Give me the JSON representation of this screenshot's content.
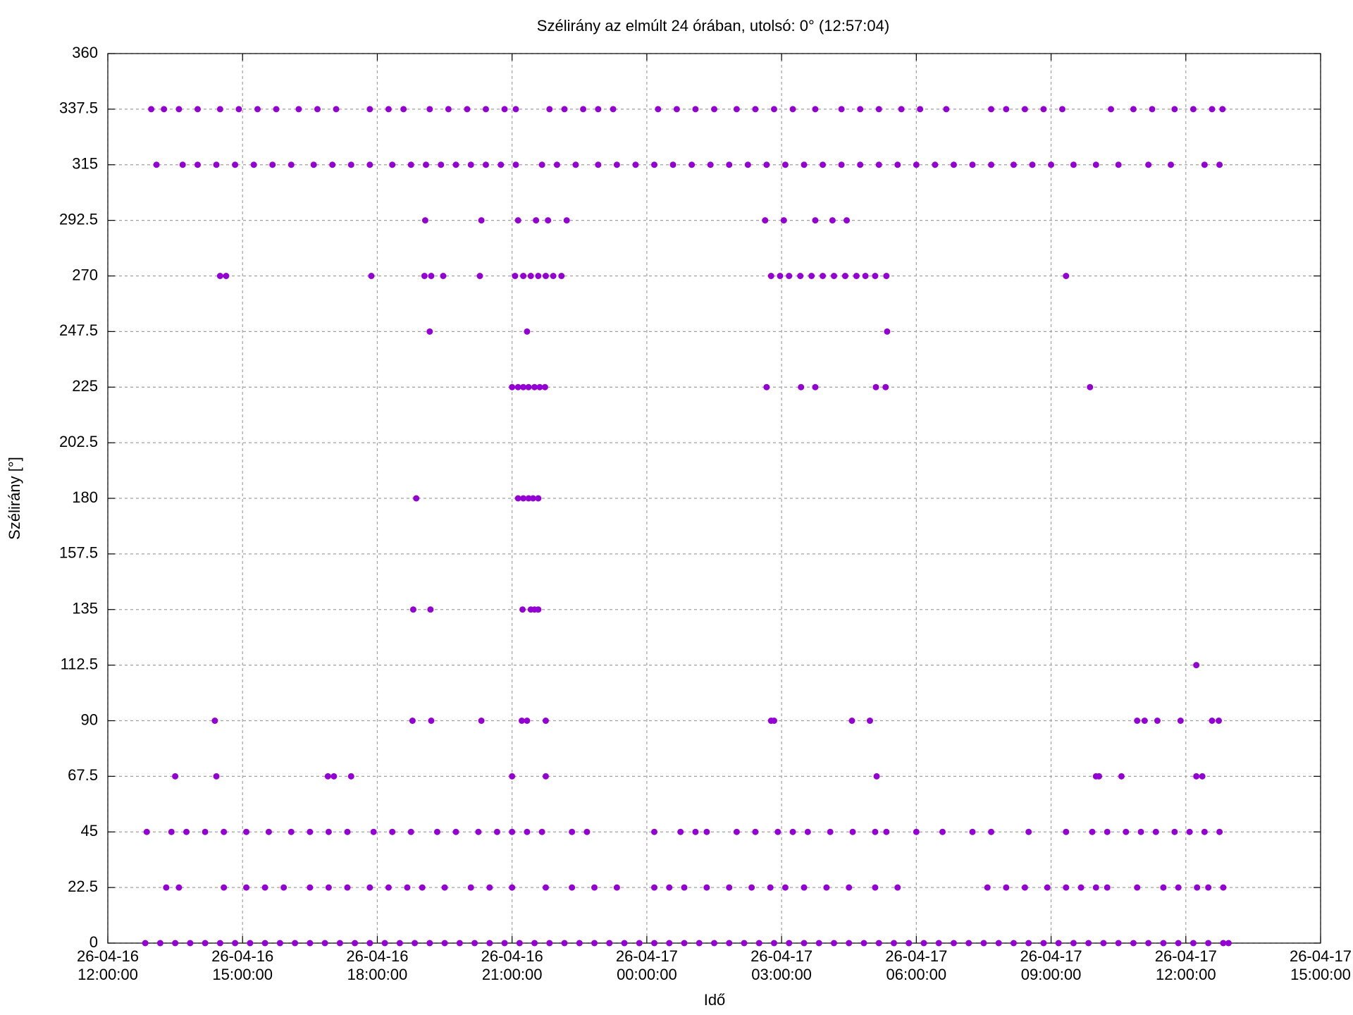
{
  "chart_data": {
    "type": "scatter",
    "title": "Szélirány az elmúlt 24 órában, utolsó: 0° (12:57:04)",
    "x_label": "Idő",
    "y_label": "Szélirány [°]",
    "xlim": [
      "26-04-16 12:00:00",
      "26-04-17 15:00:00"
    ],
    "xticks": [
      "26-04-16 12:00:00",
      "26-04-16 15:00:00",
      "26-04-16 18:00:00",
      "26-04-16 21:00:00",
      "26-04-17 00:00:00",
      "26-04-17 03:00:00",
      "26-04-17 06:00:00",
      "26-04-17 09:00:00",
      "26-04-17 12:00:00",
      "26-04-17 15:00:00"
    ],
    "ylim": [
      0,
      360
    ],
    "yticks": [
      0,
      22.5,
      45,
      67.5,
      90,
      112.5,
      135,
      157.5,
      180,
      202.5,
      225,
      247.5,
      270,
      292.5,
      315,
      337.5,
      360
    ],
    "grid": true,
    "series": [
      {
        "color": "#9400d3",
        "x": [
          "26-04-16 12:50:00",
          "26-04-16 13:10:00",
          "26-04-16 13:30:00",
          "26-04-16 13:50:00",
          "26-04-16 14:10:00",
          "26-04-16 14:30:00",
          "26-04-16 14:50:00",
          "26-04-16 15:10:00",
          "26-04-16 15:30:00",
          "26-04-16 15:50:00",
          "26-04-16 16:10:00",
          "26-04-16 16:30:00",
          "26-04-16 16:50:00",
          "26-04-16 17:10:00",
          "26-04-16 17:30:00",
          "26-04-16 17:50:00",
          "26-04-16 18:10:00",
          "26-04-16 18:30:00",
          "26-04-16 18:50:00",
          "26-04-16 19:10:00",
          "26-04-16 19:30:00",
          "26-04-16 19:50:00",
          "26-04-16 20:10:00",
          "26-04-16 20:30:00",
          "26-04-16 20:50:00",
          "26-04-16 21:10:00",
          "26-04-16 21:30:00",
          "26-04-16 21:50:00",
          "26-04-16 22:10:00",
          "26-04-16 22:30:00",
          "26-04-16 22:50:00",
          "26-04-16 23:10:00",
          "26-04-16 23:30:00",
          "26-04-16 23:50:00",
          "26-04-17 00:10:00",
          "26-04-17 00:30:00",
          "26-04-17 00:50:00",
          "26-04-17 01:10:00",
          "26-04-17 01:30:00",
          "26-04-17 01:50:00",
          "26-04-17 02:10:00",
          "26-04-17 02:30:00",
          "26-04-17 02:50:00",
          "26-04-17 03:10:00",
          "26-04-17 03:30:00",
          "26-04-17 03:50:00",
          "26-04-17 04:10:00",
          "26-04-17 04:30:00",
          "26-04-17 04:50:00",
          "26-04-17 05:10:00",
          "26-04-17 05:30:00",
          "26-04-17 05:50:00",
          "26-04-17 06:10:00",
          "26-04-17 06:30:00",
          "26-04-17 06:50:00",
          "26-04-17 07:10:00",
          "26-04-17 07:30:00",
          "26-04-17 07:50:00",
          "26-04-17 08:10:00",
          "26-04-17 08:30:00",
          "26-04-17 08:50:00",
          "26-04-17 09:10:00",
          "26-04-17 09:30:00",
          "26-04-17 09:50:00",
          "26-04-17 10:10:00",
          "26-04-17 10:30:00",
          "26-04-17 10:50:00",
          "26-04-17 11:10:00",
          "26-04-17 11:30:00",
          "26-04-17 11:50:00",
          "26-04-17 12:10:00",
          "26-04-17 12:30:00",
          "26-04-17 12:50:00",
          "26-04-17 12:57:04"
        ],
        "values": [
          0,
          0,
          0,
          0,
          0,
          0,
          0,
          0,
          0,
          0,
          0,
          0,
          0,
          0,
          0,
          0,
          0,
          0,
          0,
          0,
          0,
          0,
          0,
          0,
          0,
          0,
          0,
          0,
          0,
          0,
          0,
          0,
          0,
          0,
          0,
          0,
          0,
          0,
          0,
          0,
          0,
          0,
          0,
          0,
          0,
          0,
          0,
          0,
          0,
          0,
          0,
          0,
          0,
          0,
          0,
          0,
          0,
          0,
          0,
          0,
          0,
          0,
          0,
          0,
          0,
          0,
          0,
          0,
          0,
          0,
          0,
          0,
          0,
          0
        ]
      },
      {
        "color": "#9400d3",
        "x": [
          "26-04-16 13:05:00",
          "26-04-16 13:40:00",
          "26-04-16 14:00:00",
          "26-04-16 14:25:00",
          "26-04-16 14:50:00",
          "26-04-16 15:15:00",
          "26-04-16 15:40:00",
          "26-04-16 16:05:00",
          "26-04-16 16:35:00",
          "26-04-16 17:00:00",
          "26-04-16 17:25:00",
          "26-04-16 17:50:00",
          "26-04-16 18:20:00",
          "26-04-16 18:45:00",
          "26-04-16 19:05:00",
          "26-04-16 19:25:00",
          "26-04-16 19:45:00",
          "26-04-16 20:05:00",
          "26-04-16 20:25:00",
          "26-04-16 20:45:00",
          "26-04-16 21:05:00",
          "26-04-16 21:40:00",
          "26-04-16 22:00:00",
          "26-04-16 22:25:00",
          "26-04-16 22:55:00",
          "26-04-16 23:20:00",
          "26-04-16 23:45:00",
          "26-04-17 00:10:00",
          "26-04-17 00:35:00",
          "26-04-17 01:00:00",
          "26-04-17 01:25:00",
          "26-04-17 01:50:00",
          "26-04-17 02:15:00",
          "26-04-17 02:40:00",
          "26-04-17 03:05:00",
          "26-04-17 03:30:00",
          "26-04-17 03:55:00",
          "26-04-17 04:20:00",
          "26-04-17 04:45:00",
          "26-04-17 05:10:00",
          "26-04-17 05:35:00",
          "26-04-17 06:00:00",
          "26-04-17 06:25:00",
          "26-04-17 06:50:00",
          "26-04-17 07:15:00",
          "26-04-17 07:40:00",
          "26-04-17 08:10:00",
          "26-04-17 08:35:00",
          "26-04-17 09:00:00",
          "26-04-17 09:30:00",
          "26-04-17 10:00:00",
          "26-04-17 10:30:00",
          "26-04-17 11:10:00",
          "26-04-17 11:40:00",
          "26-04-17 12:25:00",
          "26-04-17 12:45:00"
        ],
        "values": [
          315,
          315,
          315,
          315,
          315,
          315,
          315,
          315,
          315,
          315,
          315,
          315,
          315,
          315,
          315,
          315,
          315,
          315,
          315,
          315,
          315,
          315,
          315,
          315,
          315,
          315,
          315,
          315,
          315,
          315,
          315,
          315,
          315,
          315,
          315,
          315,
          315,
          315,
          315,
          315,
          315,
          315,
          315,
          315,
          315,
          315,
          315,
          315,
          315,
          315,
          315,
          315,
          315,
          315,
          315,
          315
        ]
      },
      {
        "color": "#9400d3",
        "x": [
          "26-04-16 12:58:00",
          "26-04-16 13:15:00",
          "26-04-16 13:35:00",
          "26-04-16 14:00:00",
          "26-04-16 14:30:00",
          "26-04-16 14:55:00",
          "26-04-16 15:20:00",
          "26-04-16 15:45:00",
          "26-04-16 16:15:00",
          "26-04-16 16:40:00",
          "26-04-16 17:05:00",
          "26-04-16 17:50:00",
          "26-04-16 18:15:00",
          "26-04-16 18:35:00",
          "26-04-16 19:10:00",
          "26-04-16 19:35:00",
          "26-04-16 20:00:00",
          "26-04-16 20:25:00",
          "26-04-16 20:50:00",
          "26-04-16 21:05:00",
          "26-04-16 21:50:00",
          "26-04-16 22:10:00",
          "26-04-16 22:35:00",
          "26-04-16 22:55:00",
          "26-04-16 23:15:00",
          "26-04-17 00:15:00",
          "26-04-17 00:40:00",
          "26-04-17 01:05:00",
          "26-04-17 01:30:00",
          "26-04-17 02:00:00",
          "26-04-17 02:25:00",
          "26-04-17 02:50:00",
          "26-04-17 03:15:00",
          "26-04-17 03:45:00",
          "26-04-17 04:20:00",
          "26-04-17 04:45:00",
          "26-04-17 05:10:00",
          "26-04-17 05:40:00",
          "26-04-17 06:05:00",
          "26-04-17 06:40:00",
          "26-04-17 07:40:00",
          "26-04-17 08:00:00",
          "26-04-17 08:25:00",
          "26-04-17 08:50:00",
          "26-04-17 09:15:00",
          "26-04-17 10:20:00",
          "26-04-17 10:50:00",
          "26-04-17 11:15:00",
          "26-04-17 11:45:00",
          "26-04-17 12:10:00",
          "26-04-17 12:35:00",
          "26-04-17 12:49:00"
        ],
        "values": [
          337.5,
          337.5,
          337.5,
          337.5,
          337.5,
          337.5,
          337.5,
          337.5,
          337.5,
          337.5,
          337.5,
          337.5,
          337.5,
          337.5,
          337.5,
          337.5,
          337.5,
          337.5,
          337.5,
          337.5,
          337.5,
          337.5,
          337.5,
          337.5,
          337.5,
          337.5,
          337.5,
          337.5,
          337.5,
          337.5,
          337.5,
          337.5,
          337.5,
          337.5,
          337.5,
          337.5,
          337.5,
          337.5,
          337.5,
          337.5,
          337.5,
          337.5,
          337.5,
          337.5,
          337.5,
          337.5,
          337.5,
          337.5,
          337.5,
          337.5,
          337.5,
          337.5
        ]
      },
      {
        "color": "#9400d3",
        "x": [
          "26-04-16 19:04:00",
          "26-04-16 20:19:00",
          "26-04-16 21:08:00",
          "26-04-16 21:32:00",
          "26-04-16 21:48:00",
          "26-04-16 22:13:00",
          "26-04-17 02:38:00",
          "26-04-17 03:03:00",
          "26-04-17 03:45:00",
          "26-04-17 04:08:00",
          "26-04-17 04:27:00"
        ],
        "values": [
          292.5,
          292.5,
          292.5,
          292.5,
          292.5,
          292.5,
          292.5,
          292.5,
          292.5,
          292.5,
          292.5
        ]
      },
      {
        "color": "#9400d3",
        "x": [
          "26-04-16 14:30:00",
          "26-04-16 14:38:00",
          "26-04-16 17:52:00",
          "26-04-16 19:03:00",
          "26-04-16 19:12:00",
          "26-04-16 19:28:00",
          "26-04-16 20:17:00",
          "26-04-16 21:04:00",
          "26-04-16 21:15:00",
          "26-04-16 21:25:00",
          "26-04-16 21:35:00",
          "26-04-16 21:45:00",
          "26-04-16 21:55:00",
          "26-04-16 22:06:00",
          "26-04-17 02:46:00",
          "26-04-17 02:58:00",
          "26-04-17 03:10:00",
          "26-04-17 03:25:00",
          "26-04-17 03:40:00",
          "26-04-17 03:55:00",
          "26-04-17 04:10:00",
          "26-04-17 04:25:00",
          "26-04-17 04:40:00",
          "26-04-17 04:52:00",
          "26-04-17 05:05:00",
          "26-04-17 05:20:00",
          "26-04-17 09:20:00"
        ],
        "values": [
          270,
          270,
          270,
          270,
          270,
          270,
          270,
          270,
          270,
          270,
          270,
          270,
          270,
          270,
          270,
          270,
          270,
          270,
          270,
          270,
          270,
          270,
          270,
          270,
          270,
          270,
          270
        ]
      },
      {
        "color": "#9400d3",
        "x": [
          "26-04-16 19:10:00",
          "26-04-16 21:20:00",
          "26-04-17 05:21:00"
        ],
        "values": [
          247.5,
          247.5,
          247.5
        ]
      },
      {
        "color": "#9400d3",
        "x": [
          "26-04-16 21:00:00",
          "26-04-16 21:08:00",
          "26-04-16 21:15:00",
          "26-04-16 21:22:00",
          "26-04-16 21:30:00",
          "26-04-16 21:37:00",
          "26-04-16 21:44:00",
          "26-04-17 02:40:00",
          "26-04-17 03:26:00",
          "26-04-17 03:45:00",
          "26-04-17 05:06:00",
          "26-04-17 05:19:00",
          "26-04-17 09:52:00"
        ],
        "values": [
          225,
          225,
          225,
          225,
          225,
          225,
          225,
          225,
          225,
          225,
          225,
          225,
          225
        ]
      },
      {
        "color": "#9400d3",
        "x": [
          "26-04-16 18:52:00",
          "26-04-16 21:08:00",
          "26-04-16 21:15:00",
          "26-04-16 21:22:00",
          "26-04-16 21:28:00",
          "26-04-16 21:35:00"
        ],
        "values": [
          180,
          180,
          180,
          180,
          180,
          180
        ]
      },
      {
        "color": "#9400d3",
        "x": [
          "26-04-16 18:48:00",
          "26-04-16 19:11:00",
          "26-04-16 21:14:00",
          "26-04-16 21:25:00",
          "26-04-16 21:30:00",
          "26-04-16 21:35:00"
        ],
        "values": [
          135,
          135,
          135,
          135,
          135,
          135
        ]
      },
      {
        "color": "#9400d3",
        "x": [
          "26-04-17 12:14:00"
        ],
        "values": [
          112.5
        ]
      },
      {
        "color": "#9400d3",
        "x": [
          "26-04-16 14:23:00",
          "26-04-16 18:47:00",
          "26-04-16 19:12:00",
          "26-04-16 20:19:00",
          "26-04-16 21:13:00",
          "26-04-16 21:20:00",
          "26-04-16 21:45:00",
          "26-04-17 02:46:00",
          "26-04-17 02:50:00",
          "26-04-17 04:34:00",
          "26-04-17 04:58:00",
          "26-04-17 10:55:00",
          "26-04-17 11:05:00",
          "26-04-17 11:22:00",
          "26-04-17 11:53:00",
          "26-04-17 12:35:00",
          "26-04-17 12:44:00"
        ],
        "values": [
          90,
          90,
          90,
          90,
          90,
          90,
          90,
          90,
          90,
          90,
          90,
          90,
          90,
          90,
          90,
          90,
          90
        ]
      },
      {
        "color": "#9400d3",
        "x": [
          "26-04-16 13:30:00",
          "26-04-16 14:25:00",
          "26-04-16 16:54:00",
          "26-04-16 17:02:00",
          "26-04-16 17:25:00",
          "26-04-16 21:00:00",
          "26-04-16 21:45:00",
          "26-04-17 05:07:00",
          "26-04-17 10:00:00",
          "26-04-17 10:04:00",
          "26-04-17 10:34:00",
          "26-04-17 12:14:00",
          "26-04-17 12:22:00"
        ],
        "values": [
          67.5,
          67.5,
          67.5,
          67.5,
          67.5,
          67.5,
          67.5,
          67.5,
          67.5,
          67.5,
          67.5,
          67.5,
          67.5
        ]
      },
      {
        "color": "#9400d3",
        "x": [
          "26-04-16 12:52:00",
          "26-04-16 13:25:00",
          "26-04-16 13:45:00",
          "26-04-16 14:10:00",
          "26-04-16 14:35:00",
          "26-04-16 15:05:00",
          "26-04-16 15:35:00",
          "26-04-16 16:05:00",
          "26-04-16 16:30:00",
          "26-04-16 16:55:00",
          "26-04-16 17:20:00",
          "26-04-16 17:55:00",
          "26-04-16 18:20:00",
          "26-04-16 18:45:00",
          "26-04-16 19:20:00",
          "26-04-16 19:45:00",
          "26-04-16 20:15:00",
          "26-04-16 20:40:00",
          "26-04-16 21:00:00",
          "26-04-16 21:20:00",
          "26-04-16 21:40:00",
          "26-04-16 22:20:00",
          "26-04-16 22:40:00",
          "26-04-17 00:10:00",
          "26-04-17 00:45:00",
          "26-04-17 01:05:00",
          "26-04-17 01:20:00",
          "26-04-17 02:00:00",
          "26-04-17 02:25:00",
          "26-04-17 02:55:00",
          "26-04-17 03:15:00",
          "26-04-17 03:35:00",
          "26-04-17 04:05:00",
          "26-04-17 04:35:00",
          "26-04-17 05:05:00",
          "26-04-17 05:20:00",
          "26-04-17 06:00:00",
          "26-04-17 06:35:00",
          "26-04-17 07:15:00",
          "26-04-17 07:40:00",
          "26-04-17 08:30:00",
          "26-04-17 09:20:00",
          "26-04-17 09:55:00",
          "26-04-17 10:15:00",
          "26-04-17 10:40:00",
          "26-04-17 11:00:00",
          "26-04-17 11:20:00",
          "26-04-17 11:45:00",
          "26-04-17 12:05:00",
          "26-04-17 12:25:00",
          "26-04-17 12:45:00"
        ],
        "values": [
          45,
          45,
          45,
          45,
          45,
          45,
          45,
          45,
          45,
          45,
          45,
          45,
          45,
          45,
          45,
          45,
          45,
          45,
          45,
          45,
          45,
          45,
          45,
          45,
          45,
          45,
          45,
          45,
          45,
          45,
          45,
          45,
          45,
          45,
          45,
          45,
          45,
          45,
          45,
          45,
          45,
          45,
          45,
          45,
          45,
          45,
          45,
          45,
          45,
          45,
          45
        ]
      },
      {
        "color": "#9400d3",
        "x": [
          "26-04-16 13:18:00",
          "26-04-16 13:35:00",
          "26-04-16 14:35:00",
          "26-04-16 15:05:00",
          "26-04-16 15:30:00",
          "26-04-16 15:55:00",
          "26-04-16 16:30:00",
          "26-04-16 16:55:00",
          "26-04-16 17:20:00",
          "26-04-16 17:50:00",
          "26-04-16 18:15:00",
          "26-04-16 18:40:00",
          "26-04-16 19:00:00",
          "26-04-16 19:30:00",
          "26-04-16 20:05:00",
          "26-04-16 20:30:00",
          "26-04-16 21:00:00",
          "26-04-16 21:45:00",
          "26-04-16 22:20:00",
          "26-04-16 22:50:00",
          "26-04-16 23:20:00",
          "26-04-17 00:10:00",
          "26-04-17 00:30:00",
          "26-04-17 00:50:00",
          "26-04-17 01:20:00",
          "26-04-17 01:50:00",
          "26-04-17 02:20:00",
          "26-04-17 02:45:00",
          "26-04-17 03:05:00",
          "26-04-17 03:30:00",
          "26-04-17 04:00:00",
          "26-04-17 04:30:00",
          "26-04-17 05:05:00",
          "26-04-17 05:35:00",
          "26-04-17 07:35:00",
          "26-04-17 08:00:00",
          "26-04-17 08:25:00",
          "26-04-17 08:55:00",
          "26-04-17 09:20:00",
          "26-04-17 09:40:00",
          "26-04-17 10:00:00",
          "26-04-17 10:15:00",
          "26-04-17 10:55:00",
          "26-04-17 11:30:00",
          "26-04-17 11:50:00",
          "26-04-17 12:15:00",
          "26-04-17 12:30:00",
          "26-04-17 12:50:00"
        ],
        "values": [
          22.5,
          22.5,
          22.5,
          22.5,
          22.5,
          22.5,
          22.5,
          22.5,
          22.5,
          22.5,
          22.5,
          22.5,
          22.5,
          22.5,
          22.5,
          22.5,
          22.5,
          22.5,
          22.5,
          22.5,
          22.5,
          22.5,
          22.5,
          22.5,
          22.5,
          22.5,
          22.5,
          22.5,
          22.5,
          22.5,
          22.5,
          22.5,
          22.5,
          22.5,
          22.5,
          22.5,
          22.5,
          22.5,
          22.5,
          22.5,
          22.5,
          22.5,
          22.5,
          22.5,
          22.5,
          22.5,
          22.5,
          22.5
        ]
      }
    ]
  }
}
